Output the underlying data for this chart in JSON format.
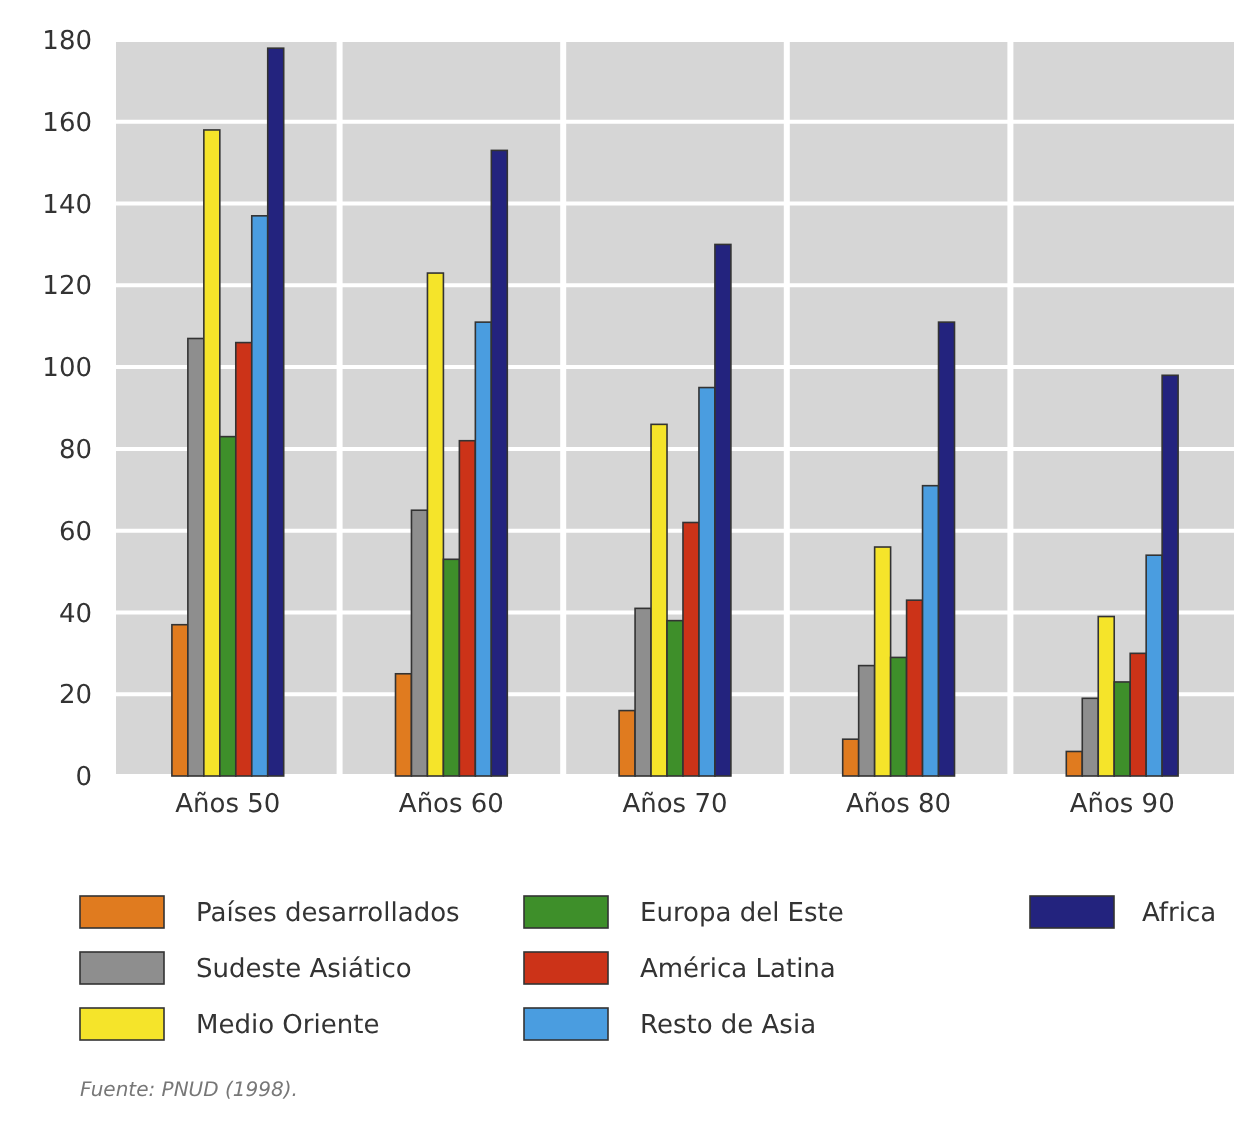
{
  "chart_data": {
    "type": "bar",
    "categories": [
      "Años 50",
      "Años 60",
      "Años 70",
      "Años 80",
      "Años 90"
    ],
    "series": [
      {
        "name": "Países desarrollados",
        "color": "#e07b1f",
        "values": [
          37,
          25,
          16,
          9,
          6
        ]
      },
      {
        "name": "Sudeste Asiático",
        "color": "#8e8e8e",
        "values": [
          107,
          65,
          41,
          27,
          19
        ]
      },
      {
        "name": "Medio Oriente",
        "color": "#f5e42a",
        "values": [
          158,
          123,
          86,
          56,
          39
        ]
      },
      {
        "name": "Europa del Este",
        "color": "#3e8f2a",
        "values": [
          83,
          53,
          38,
          29,
          23
        ]
      },
      {
        "name": "América Latina",
        "color": "#cc3318",
        "values": [
          106,
          82,
          62,
          43,
          30
        ]
      },
      {
        "name": "Resto de Asia",
        "color": "#4a9de0",
        "values": [
          137,
          111,
          95,
          71,
          54
        ]
      },
      {
        "name": "Africa",
        "color": "#23237e",
        "values": [
          178,
          153,
          130,
          111,
          98
        ]
      }
    ],
    "ylim": [
      0,
      180
    ],
    "yticks": [
      0,
      20,
      40,
      60,
      80,
      100,
      120,
      140,
      160,
      180
    ],
    "grid": "y",
    "legend": "bottom",
    "annotations": [
      "Fuente: PNUD (1998)."
    ]
  }
}
